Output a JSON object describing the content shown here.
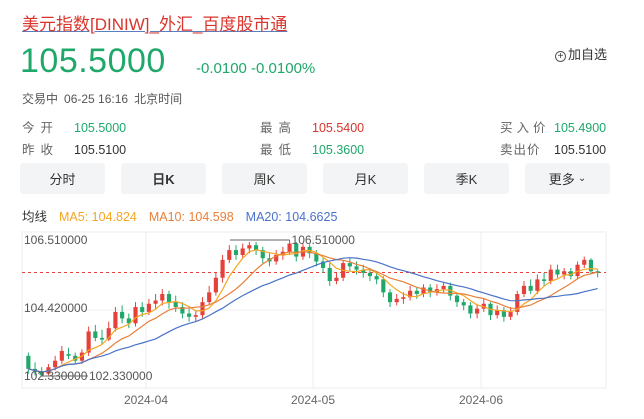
{
  "header": {
    "title": "美元指数[DINIW]_外汇_百度股市通",
    "price": "105.5000",
    "change": "-0.0100",
    "change_pct": "-0.0100%",
    "watch_label": "加自选",
    "status": "交易中",
    "datetime": "06-25 16:16",
    "timezone": "北京时间"
  },
  "quote": {
    "open_label": "今开",
    "open": "105.5000",
    "prev_close_label": "昨收",
    "prev_close": "105.5100",
    "high_label": "最高",
    "high": "105.5400",
    "low_label": "最低",
    "low": "105.3600",
    "bid_label": "买入价",
    "bid": "105.4900",
    "ask_label": "卖出价",
    "ask": "105.5100"
  },
  "tabs": [
    "分时",
    "日K",
    "周K",
    "月K",
    "季K",
    "更多"
  ],
  "ma": {
    "label": "均线",
    "ma5": "MA5: 104.824",
    "ma10": "MA10: 104.598",
    "ma20": "MA20: 104.6625"
  },
  "colors": {
    "up": "#e5413a",
    "down": "#1fa86a",
    "ma5": "#f5a623",
    "ma10": "#e8803a",
    "ma20": "#4a72c8"
  },
  "chart_data": {
    "type": "candlestick",
    "y_tick_labels": [
      "106.510000",
      "104.420000",
      "102.330000"
    ],
    "ylim": [
      102.33,
      106.51
    ],
    "x_tick_labels": [
      "2024-04",
      "2024-05",
      "2024-06"
    ],
    "max_label": "106.510000",
    "min_label": "102.330000",
    "reference_price": 105.51,
    "candles": [
      [
        102.95,
        102.55,
        103.05,
        102.4
      ],
      [
        102.55,
        102.45,
        102.75,
        102.35
      ],
      [
        102.45,
        102.35,
        102.6,
        102.33
      ],
      [
        102.4,
        102.6,
        102.7,
        102.35
      ],
      [
        102.6,
        102.8,
        102.95,
        102.5
      ],
      [
        102.8,
        103.1,
        103.25,
        102.7
      ],
      [
        103.0,
        102.95,
        103.2,
        102.85
      ],
      [
        102.95,
        102.8,
        103.05,
        102.7
      ],
      [
        102.8,
        103.05,
        103.15,
        102.7
      ],
      [
        103.05,
        103.7,
        103.85,
        102.95
      ],
      [
        103.7,
        103.5,
        103.9,
        103.4
      ],
      [
        103.5,
        103.45,
        103.75,
        103.3
      ],
      [
        103.45,
        103.8,
        104.0,
        103.4
      ],
      [
        103.8,
        104.3,
        104.45,
        103.7
      ],
      [
        104.3,
        104.1,
        104.5,
        103.95
      ],
      [
        104.1,
        103.95,
        104.25,
        103.8
      ],
      [
        103.95,
        104.45,
        104.6,
        103.85
      ],
      [
        104.45,
        104.3,
        104.6,
        104.15
      ],
      [
        104.3,
        104.55,
        104.7,
        104.2
      ],
      [
        104.55,
        104.65,
        104.85,
        104.4
      ],
      [
        104.65,
        104.85,
        105.0,
        104.5
      ],
      [
        104.85,
        104.6,
        104.95,
        104.4
      ],
      [
        104.6,
        104.45,
        104.8,
        104.3
      ],
      [
        104.45,
        104.25,
        104.6,
        104.1
      ],
      [
        104.25,
        104.15,
        104.4,
        104.0
      ],
      [
        104.15,
        104.2,
        104.35,
        104.0
      ],
      [
        104.2,
        104.6,
        104.75,
        104.1
      ],
      [
        104.6,
        104.9,
        105.1,
        104.5
      ],
      [
        104.9,
        105.35,
        105.5,
        104.8
      ],
      [
        105.35,
        105.9,
        106.05,
        105.2
      ],
      [
        105.9,
        106.2,
        106.35,
        105.8
      ],
      [
        106.2,
        106.05,
        106.35,
        105.9
      ],
      [
        106.05,
        106.25,
        106.4,
        105.95
      ],
      [
        106.25,
        106.35,
        106.45,
        106.1
      ],
      [
        106.35,
        106.2,
        106.45,
        106.05
      ],
      [
        106.2,
        105.95,
        106.3,
        105.8
      ],
      [
        105.95,
        105.85,
        106.1,
        105.7
      ],
      [
        105.85,
        106.05,
        106.2,
        105.75
      ],
      [
        106.05,
        106.15,
        106.3,
        105.9
      ],
      [
        106.15,
        106.4,
        106.51,
        106.05
      ],
      [
        106.4,
        106.0,
        106.45,
        105.85
      ],
      [
        106.0,
        106.3,
        106.4,
        105.9
      ],
      [
        106.3,
        106.1,
        106.38,
        105.95
      ],
      [
        106.1,
        105.85,
        106.2,
        105.7
      ],
      [
        105.85,
        105.65,
        105.95,
        105.5
      ],
      [
        105.65,
        105.25,
        105.8,
        105.1
      ],
      [
        105.25,
        105.35,
        105.5,
        105.15
      ],
      [
        105.35,
        105.8,
        105.9,
        105.25
      ],
      [
        105.8,
        105.7,
        105.95,
        105.55
      ],
      [
        105.7,
        105.6,
        105.85,
        105.45
      ],
      [
        105.6,
        105.5,
        105.75,
        105.35
      ],
      [
        105.5,
        105.4,
        105.65,
        105.25
      ],
      [
        105.4,
        105.3,
        105.55,
        105.15
      ],
      [
        105.3,
        104.9,
        105.4,
        104.75
      ],
      [
        104.9,
        104.6,
        105.0,
        104.45
      ],
      [
        104.6,
        104.7,
        104.85,
        104.5
      ],
      [
        104.7,
        104.75,
        104.9,
        104.55
      ],
      [
        104.75,
        104.95,
        105.1,
        104.65
      ],
      [
        104.95,
        104.85,
        105.05,
        104.7
      ],
      [
        104.85,
        105.05,
        105.15,
        104.75
      ],
      [
        105.05,
        104.9,
        105.15,
        104.75
      ],
      [
        104.9,
        105.0,
        105.15,
        104.8
      ],
      [
        105.0,
        105.1,
        105.2,
        104.9
      ],
      [
        105.1,
        104.8,
        105.2,
        104.65
      ],
      [
        104.8,
        104.6,
        104.9,
        104.45
      ],
      [
        104.6,
        104.5,
        104.7,
        104.35
      ],
      [
        104.5,
        104.25,
        104.6,
        104.1
      ],
      [
        104.25,
        104.4,
        104.55,
        104.1
      ],
      [
        104.4,
        104.55,
        104.7,
        104.3
      ],
      [
        104.55,
        104.2,
        104.6,
        104.05
      ],
      [
        104.2,
        104.35,
        104.5,
        104.1
      ],
      [
        104.35,
        104.15,
        104.45,
        104.0
      ],
      [
        104.15,
        104.3,
        104.45,
        104.05
      ],
      [
        104.3,
        104.85,
        104.95,
        104.2
      ],
      [
        104.85,
        105.1,
        105.25,
        104.75
      ],
      [
        105.1,
        104.95,
        105.3,
        104.85
      ],
      [
        104.95,
        105.3,
        105.45,
        104.85
      ],
      [
        105.3,
        105.25,
        105.5,
        105.1
      ],
      [
        105.25,
        105.6,
        105.75,
        105.15
      ],
      [
        105.6,
        105.45,
        105.75,
        105.35
      ],
      [
        105.45,
        105.55,
        105.65,
        105.3
      ],
      [
        105.55,
        105.4,
        105.65,
        105.3
      ],
      [
        105.4,
        105.75,
        105.85,
        105.3
      ],
      [
        105.75,
        105.9,
        106.0,
        105.65
      ],
      [
        105.9,
        105.55,
        105.95,
        105.45
      ],
      [
        105.55,
        105.5,
        105.6,
        105.36
      ]
    ]
  }
}
